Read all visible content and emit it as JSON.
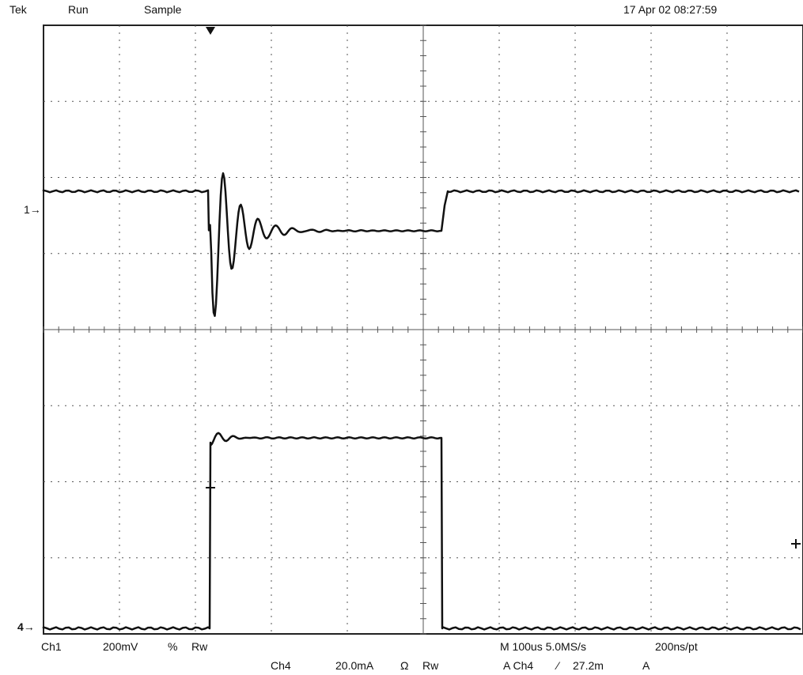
{
  "header": {
    "brand": "Tek",
    "run_state": "Run",
    "acq_mode": "Sample",
    "timestamp": "17 Apr 02 08:27:59"
  },
  "markers": {
    "ch1_ground": "1→",
    "ch4_ground": "4→"
  },
  "readouts": {
    "ch1_label": "Ch1",
    "ch1_scale": "200mV",
    "ch1_coupling": "%",
    "ch1_bw": "Rw",
    "ch4_label": "Ch4",
    "ch4_scale": "20.0mA",
    "ch4_coupling": "Ω",
    "ch4_bw": "Rw",
    "timebase": "M 100us 5.0MS/s",
    "record": "200ns/pt",
    "trigger_src": "A Ch4",
    "trigger_slope": "⁄",
    "trigger_level": "27.2m",
    "trigger_unit": "A"
  },
  "colors": {
    "trace": "#111111",
    "grid": "#555555",
    "background": "#ffffff"
  }
}
